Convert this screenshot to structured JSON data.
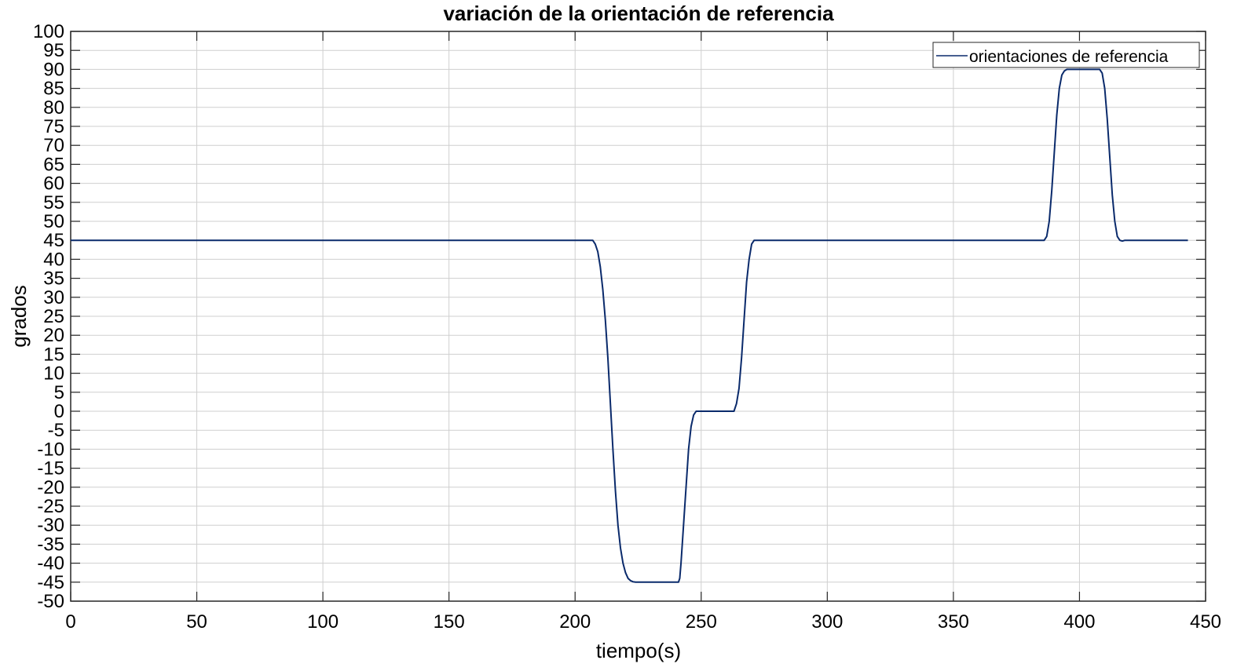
{
  "chart_data": {
    "type": "line",
    "title": "variación de la orientación de referencia",
    "xlabel": "tiempo(s)",
    "ylabel": "grados",
    "xlim": [
      0,
      450
    ],
    "ylim": [
      -50,
      100
    ],
    "xticks": [
      0,
      50,
      100,
      150,
      200,
      250,
      300,
      350,
      400,
      450
    ],
    "yticks": [
      -50,
      -45,
      -40,
      -35,
      -30,
      -25,
      -20,
      -15,
      -10,
      -5,
      0,
      5,
      10,
      15,
      20,
      25,
      30,
      35,
      40,
      45,
      50,
      55,
      60,
      65,
      70,
      75,
      80,
      85,
      90,
      95,
      100
    ],
    "grid": true,
    "legend_position": "top-right",
    "series": [
      {
        "name": "orientaciones de referencia",
        "color": "#0a2a6b",
        "x": [
          0,
          207,
          208,
          209,
          210,
          211,
          212,
          213,
          214,
          215,
          216,
          217,
          218,
          219,
          220,
          221,
          222,
          223,
          224,
          225,
          241,
          241.5,
          242,
          243,
          244,
          245,
          246,
          247,
          248,
          249,
          250,
          263,
          264,
          265,
          266,
          267,
          268,
          269,
          270,
          271,
          386,
          387,
          388,
          389,
          390,
          391,
          392,
          393,
          394,
          395,
          396,
          408,
          409,
          410,
          411,
          412,
          413,
          414,
          415,
          416,
          417,
          418,
          443
        ],
        "y": [
          45,
          45,
          44,
          42,
          38,
          32,
          24,
          14,
          2,
          -10,
          -21,
          -30,
          -36,
          -40,
          -42.5,
          -44,
          -44.6,
          -44.9,
          -45,
          -45,
          -45,
          -44,
          -40,
          -30,
          -20,
          -10,
          -4,
          -1,
          0,
          0,
          0,
          0,
          2,
          6,
          14,
          24,
          34,
          40,
          44,
          45,
          45,
          46,
          50,
          58,
          68,
          78,
          85,
          88.5,
          89.6,
          90,
          90,
          90,
          89,
          85,
          77,
          67,
          57,
          50,
          46,
          45,
          44.8,
          45,
          45
        ]
      }
    ]
  },
  "style": {
    "axis_color": "#262626",
    "grid_color": "#cfcfcf",
    "line_color": "#0a2a6b"
  }
}
